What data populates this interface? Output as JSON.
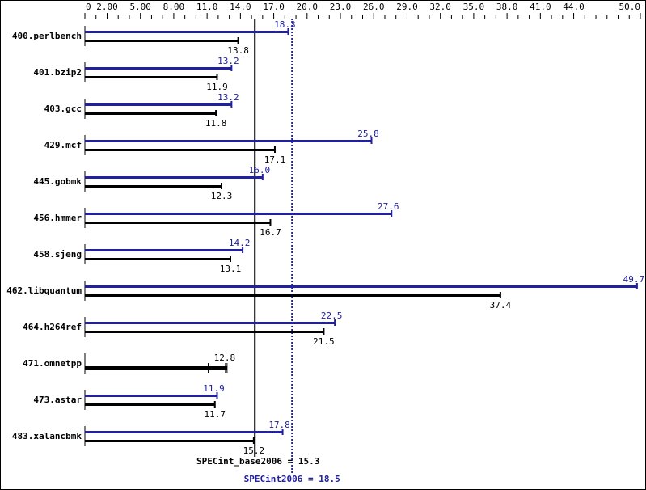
{
  "chart_data": {
    "type": "bar",
    "orientation": "horizontal",
    "xlim": [
      0,
      50
    ],
    "tick_labels": [
      "0",
      "2.00",
      "5.00",
      "8.00",
      "11.0",
      "14.0",
      "17.0",
      "20.0",
      "23.0",
      "26.0",
      "29.0",
      "32.0",
      "35.0",
      "38.0",
      "41.0",
      "44.0",
      "50.0"
    ],
    "tick_values": [
      0,
      2,
      5,
      8,
      11,
      14,
      17,
      20,
      23,
      26,
      29,
      32,
      35,
      38,
      41,
      44,
      50
    ],
    "categories": [
      "400.perlbench",
      "401.bzip2",
      "403.gcc",
      "429.mcf",
      "445.gobmk",
      "456.hmmer",
      "458.sjeng",
      "462.libquantum",
      "464.h264ref",
      "471.omnetpp",
      "473.astar",
      "483.xalancbmk"
    ],
    "series": [
      {
        "key": "peak",
        "values": [
          18.3,
          13.2,
          13.2,
          25.8,
          16.0,
          27.6,
          14.2,
          49.7,
          22.5,
          null,
          11.9,
          17.8
        ],
        "labels": [
          "18.3",
          "13.2",
          "13.2",
          "25.8",
          "16.0",
          "27.6",
          "14.2",
          "49.7",
          "22.5",
          "",
          "11.9",
          "17.8"
        ]
      },
      {
        "key": "base",
        "values": [
          13.8,
          11.9,
          11.8,
          17.1,
          12.3,
          16.7,
          13.1,
          37.4,
          21.5,
          12.8,
          11.7,
          15.2
        ],
        "labels": [
          "13.8",
          "11.9",
          "11.8",
          "17.1",
          "12.3",
          "16.7",
          "13.1",
          "37.4",
          "21.5",
          "12.8",
          "11.7",
          "15.2"
        ]
      }
    ],
    "reference_lines": [
      {
        "key": "base",
        "value": 15.3,
        "label": "SPECint_base2006 = 15.3",
        "style": "solid",
        "color": "#000000"
      },
      {
        "key": "peak",
        "value": 18.5,
        "label": "SPECint2006 = 18.5",
        "style": "dotted",
        "color": "#2020a0"
      }
    ],
    "colors": {
      "peak": "#2020a0",
      "base": "#000000"
    },
    "grid": false
  }
}
